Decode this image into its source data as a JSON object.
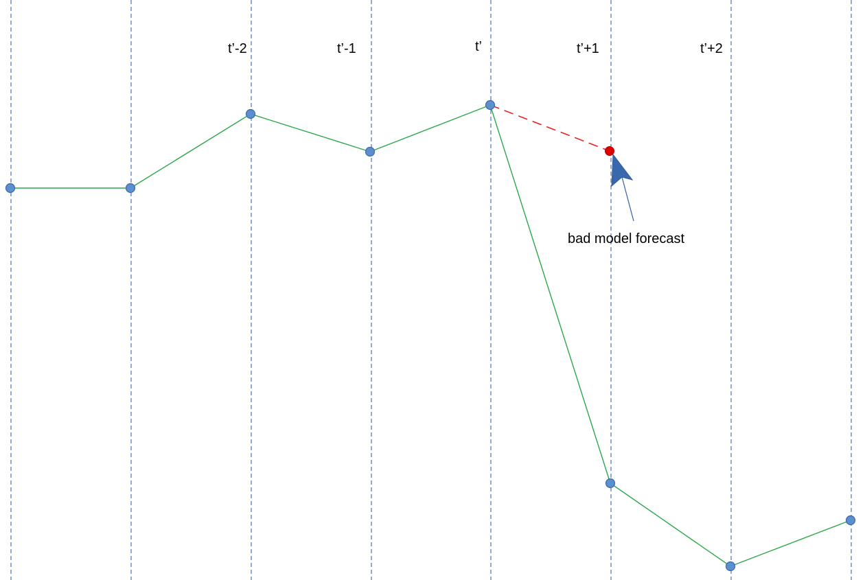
{
  "time_labels": [
    "t’-2",
    "t’-1",
    "t’",
    "t’+1",
    "t’+2"
  ],
  "annotation": {
    "text": "bad model forecast"
  },
  "colors": {
    "gridline": "#4a72b8",
    "actual_line": "#2ba84a",
    "forecast_line": "#e8211e",
    "actual_point_fill": "#5b8fd0",
    "actual_point_stroke": "#3d6aa8",
    "forecast_point_fill": "#e00000",
    "arrow": "#3a68ad"
  }
}
